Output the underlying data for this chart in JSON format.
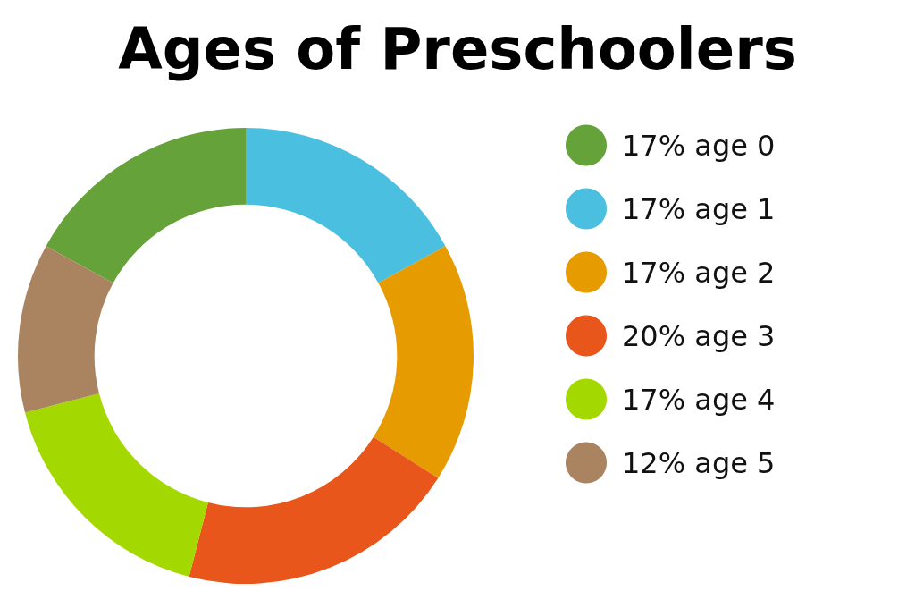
{
  "chart_data": {
    "type": "donut",
    "title": "Ages of Preschoolers",
    "categories": [
      "age 0",
      "age 1",
      "age 2",
      "age 3",
      "age 4",
      "age 5"
    ],
    "values": [
      17,
      17,
      17,
      20,
      17,
      12
    ],
    "value_labels": [
      "17%",
      "17%",
      "17%",
      "20%",
      "17%",
      "12%"
    ],
    "colors": [
      "#66a23a",
      "#4bbfe0",
      "#e69b00",
      "#e8561b",
      "#a3d900",
      "#aa8461"
    ],
    "legend": "right"
  }
}
